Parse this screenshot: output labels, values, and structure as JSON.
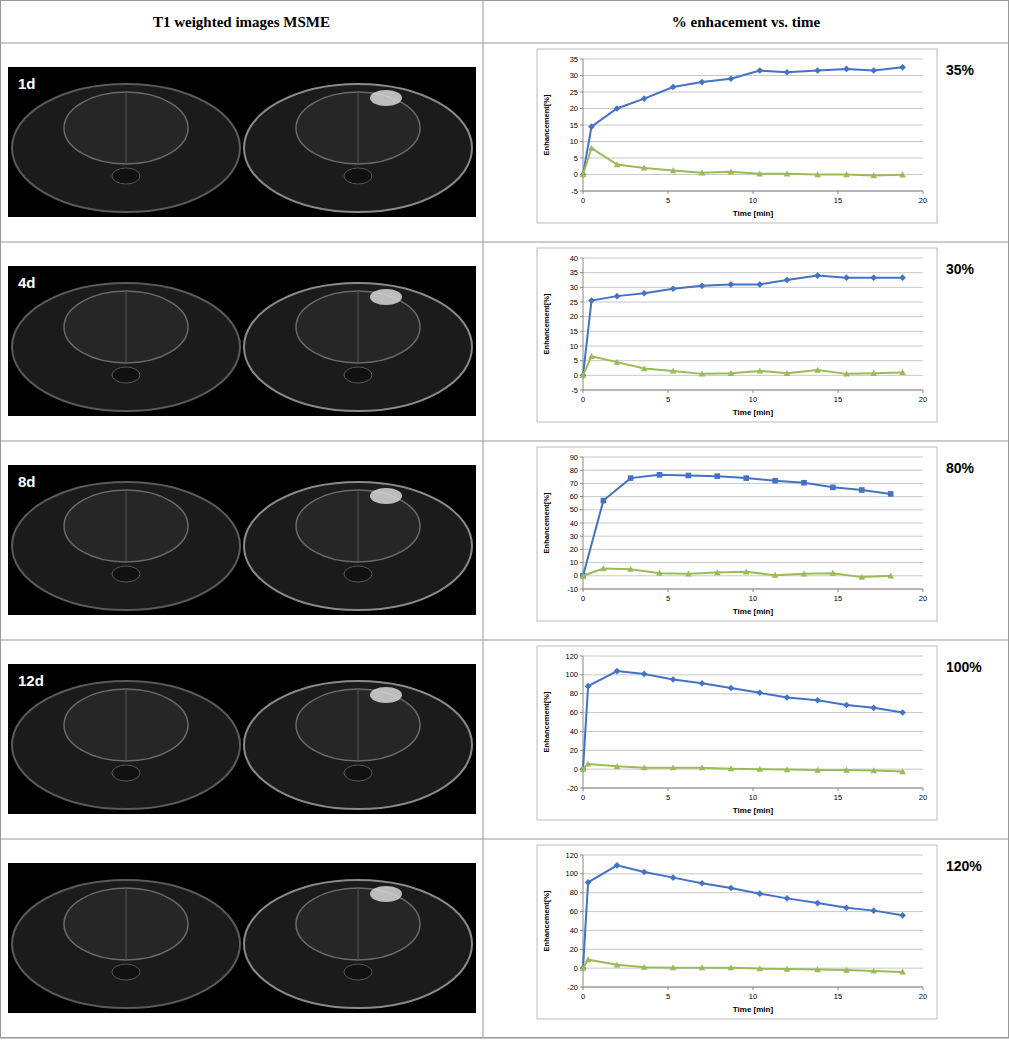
{
  "header": {
    "left": "T1 weighted images MSME",
    "right": "% enhacement vs. time"
  },
  "rows": [
    {
      "label": "1d",
      "percent": "35%"
    },
    {
      "label": "4d",
      "percent": "30%"
    },
    {
      "label": "8d",
      "percent": "80%"
    },
    {
      "label": "12d",
      "percent": "100%"
    },
    {
      "percent": "120%"
    }
  ],
  "chart_data": [
    {
      "type": "line",
      "x_label": "Time [min]",
      "y_label": "Enhancement[%]",
      "x": [
        0,
        0.5,
        2,
        3.6,
        5.3,
        7,
        8.7,
        10.4,
        12,
        13.8,
        15.5,
        17.1,
        18.8
      ],
      "xlim": [
        0,
        20
      ],
      "xticks": [
        0,
        5,
        10,
        15,
        20
      ],
      "ylim": [
        -5,
        35
      ],
      "yticks": [
        -5,
        0,
        5,
        10,
        15,
        20,
        25,
        30,
        35
      ],
      "grid": true,
      "series": [
        {
          "color": "#4472c4",
          "marker": "diamond",
          "values": [
            0,
            14.5,
            20,
            23,
            26.5,
            28,
            29,
            31.5,
            31,
            31.5,
            32,
            31.5,
            32.5
          ]
        },
        {
          "color": "#9bbb59",
          "marker": "triangle",
          "values": [
            0,
            8,
            3,
            2,
            1.2,
            0.5,
            0.8,
            0.2,
            0.2,
            0,
            0,
            -0.3,
            -0.1
          ]
        }
      ]
    },
    {
      "type": "line",
      "x_label": "Time [min]",
      "y_label": "Enhancement[%]",
      "x": [
        0,
        0.5,
        2,
        3.6,
        5.3,
        7,
        8.7,
        10.4,
        12,
        13.8,
        15.5,
        17.1,
        18.8
      ],
      "xlim": [
        0,
        20
      ],
      "xticks": [
        0,
        5,
        10,
        15,
        20
      ],
      "ylim": [
        -5,
        40
      ],
      "yticks": [
        -5,
        0,
        5,
        10,
        15,
        20,
        25,
        30,
        35,
        40
      ],
      "grid": true,
      "series": [
        {
          "color": "#4472c4",
          "marker": "diamond",
          "values": [
            0,
            25.5,
            27,
            28,
            29.5,
            30.5,
            31,
            31,
            32.5,
            34,
            33.3,
            33.3,
            33.3
          ]
        },
        {
          "color": "#9bbb59",
          "marker": "triangle",
          "values": [
            0,
            6.5,
            4.5,
            2.3,
            1.5,
            0.5,
            0.7,
            1.5,
            0.7,
            1.8,
            0.5,
            0.7,
            1
          ]
        }
      ]
    },
    {
      "type": "line",
      "x_label": "Time [min]",
      "y_label": "Enhancement[%]",
      "x": [
        0,
        1.2,
        2.8,
        4.5,
        6.2,
        7.9,
        9.6,
        11.3,
        13,
        14.7,
        16.4,
        18.1
      ],
      "xlim": [
        0,
        20
      ],
      "xticks": [
        0,
        5,
        10,
        15,
        20
      ],
      "ylim": [
        -10,
        90
      ],
      "yticks": [
        -10,
        0,
        10,
        20,
        30,
        40,
        50,
        60,
        70,
        80,
        90
      ],
      "grid": true,
      "series": [
        {
          "color": "#4472c4",
          "marker": "square",
          "values": [
            0,
            57,
            74,
            76.5,
            76,
            75.5,
            74,
            72,
            70.5,
            67,
            65,
            62
          ]
        },
        {
          "color": "#9bbb59",
          "marker": "triangle",
          "values": [
            0,
            5.5,
            5,
            2,
            1.5,
            2.5,
            3,
            0.5,
            1.5,
            2,
            -1,
            0
          ]
        }
      ]
    },
    {
      "type": "line",
      "x_label": "Time [min]",
      "y_label": "Enhancement[%]",
      "x": [
        0,
        0.3,
        2,
        3.6,
        5.3,
        7,
        8.7,
        10.4,
        12,
        13.8,
        15.5,
        17.1,
        18.8
      ],
      "xlim": [
        0,
        20
      ],
      "xticks": [
        0,
        5,
        10,
        15,
        20
      ],
      "ylim": [
        -20,
        120
      ],
      "yticks": [
        -20,
        0,
        20,
        40,
        60,
        80,
        100,
        120
      ],
      "grid": true,
      "series": [
        {
          "color": "#4472c4",
          "marker": "diamond",
          "values": [
            0,
            88,
            104,
            101,
            95,
            91,
            86,
            81,
            76,
            73,
            68,
            65,
            60
          ]
        },
        {
          "color": "#9bbb59",
          "marker": "triangle",
          "values": [
            0,
            5.5,
            3,
            1.5,
            1.5,
            1.5,
            0.5,
            0,
            -0.5,
            -1,
            -1,
            -1.5,
            -2.5
          ]
        }
      ]
    },
    {
      "type": "line",
      "x_label": "Time [min]",
      "y_label": "Enhancement[%]",
      "x": [
        0,
        0.3,
        2,
        3.6,
        5.3,
        7,
        8.7,
        10.4,
        12,
        13.8,
        15.5,
        17.1,
        18.8
      ],
      "xlim": [
        0,
        20
      ],
      "xticks": [
        0,
        5,
        10,
        15,
        20
      ],
      "ylim": [
        -20,
        120
      ],
      "yticks": [
        -20,
        0,
        20,
        40,
        60,
        80,
        100,
        120
      ],
      "grid": true,
      "series": [
        {
          "color": "#4472c4",
          "marker": "diamond",
          "values": [
            0,
            91,
            109,
            102,
            96,
            90,
            85,
            79,
            74,
            69,
            64,
            61,
            56
          ]
        },
        {
          "color": "#9bbb59",
          "marker": "triangle",
          "values": [
            0,
            9,
            3.5,
            1,
            0.5,
            0.5,
            0.5,
            -0.5,
            -1,
            -1.5,
            -2,
            -3,
            -4
          ]
        }
      ]
    }
  ]
}
